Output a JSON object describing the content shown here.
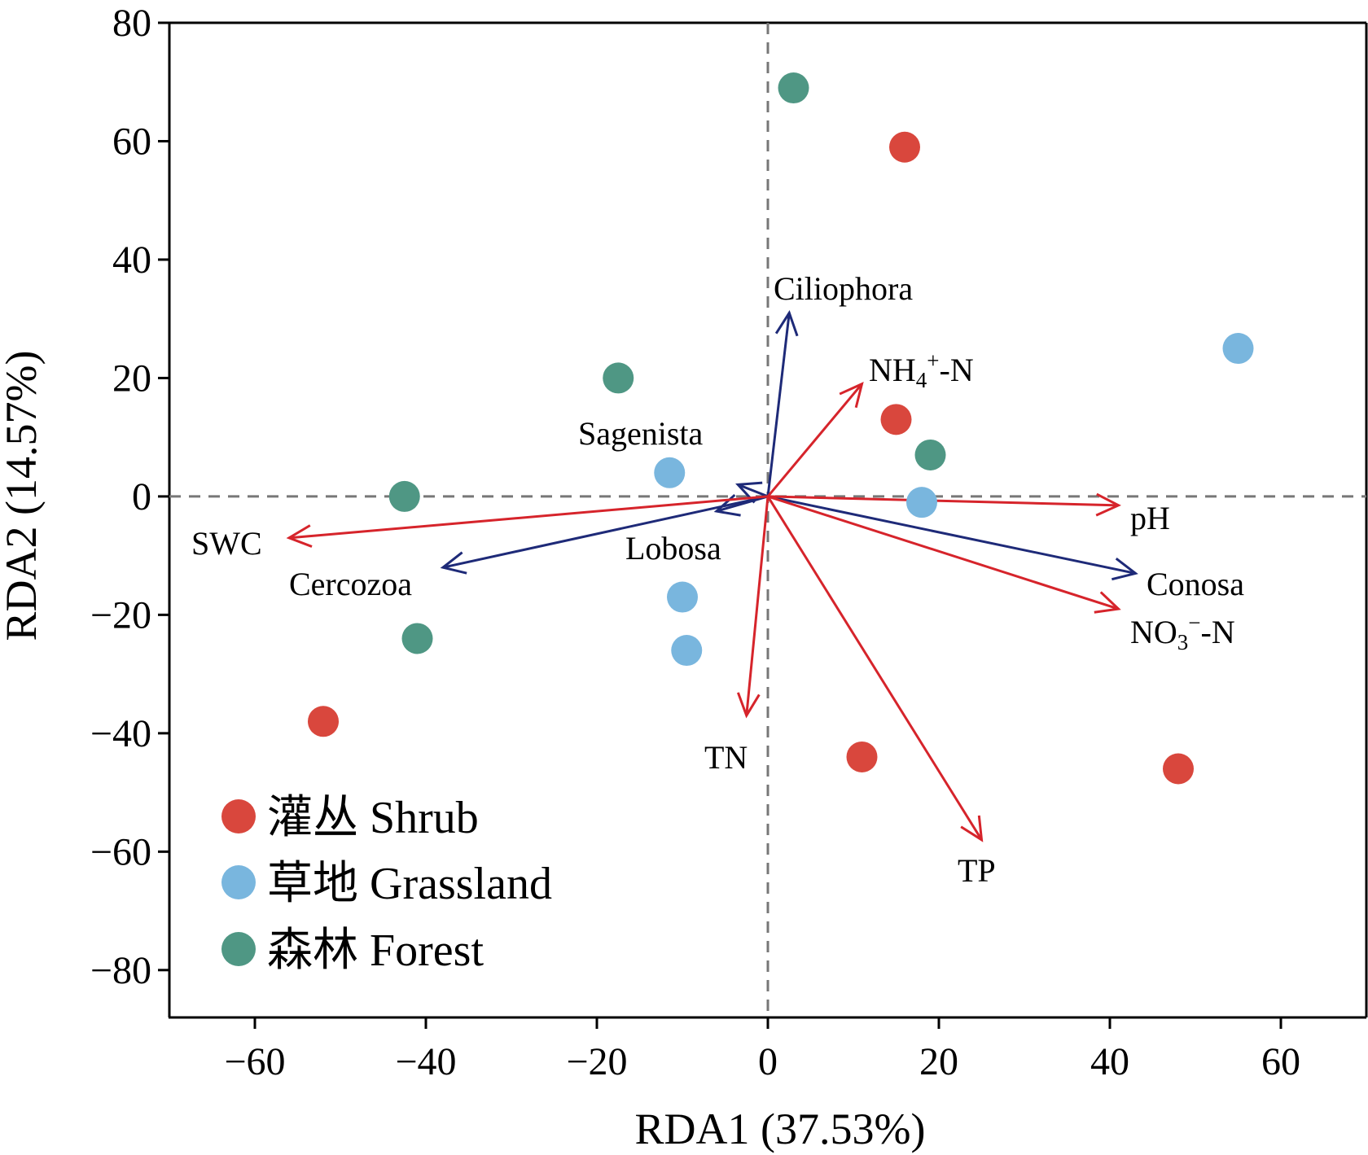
{
  "chart_data": {
    "type": "scatter",
    "title": "",
    "xlabel": "RDA1 (37.53%)",
    "ylabel": "RDA2 (14.57%)",
    "xlim": [
      -70,
      70
    ],
    "ylim": [
      -88,
      80
    ],
    "xticks": [
      -60,
      -40,
      -20,
      0,
      20,
      40,
      60
    ],
    "yticks": [
      -80,
      -60,
      -40,
      -20,
      0,
      20,
      40,
      60,
      80
    ],
    "xtick_labels": [
      "−60",
      "−40",
      "−20",
      "0",
      "20",
      "40",
      "60"
    ],
    "ytick_labels": [
      "−80",
      "−60",
      "−40",
      "−20",
      "0",
      "20",
      "40",
      "60",
      "80"
    ],
    "grid": false,
    "zero_lines": true,
    "legend_position": "bottom-left",
    "series": [
      {
        "name": "灌丛 Shrub",
        "color": "#d9473d",
        "points": [
          [
            16,
            59
          ],
          [
            15,
            13
          ],
          [
            -52,
            -38
          ],
          [
            11,
            -44
          ],
          [
            48,
            -46
          ]
        ]
      },
      {
        "name": "草地 Grassland",
        "color": "#79b6de",
        "points": [
          [
            55,
            25
          ],
          [
            -11.5,
            4
          ],
          [
            18,
            -1
          ],
          [
            -10,
            -17
          ],
          [
            -9.5,
            -26
          ]
        ]
      },
      {
        "name": "森林 Forest",
        "color": "#4f9784",
        "points": [
          [
            3,
            69
          ],
          [
            -17.5,
            20
          ],
          [
            19,
            7
          ],
          [
            -42.5,
            0
          ],
          [
            -41,
            -24
          ]
        ]
      }
    ],
    "vectors": [
      {
        "label": "Ciliophora",
        "x": 2.5,
        "y": 31,
        "color": "#1e2a78",
        "group": "protist"
      },
      {
        "label": "Sagenista",
        "x": -3.5,
        "y": 2,
        "color": "#1e2a78",
        "group": "protist"
      },
      {
        "label": "Lobosa",
        "x": -6,
        "y": -2.5,
        "color": "#1e2a78",
        "group": "protist"
      },
      {
        "label": "Cercozoa",
        "x": -38,
        "y": -12,
        "color": "#1e2a78",
        "group": "protist"
      },
      {
        "label": "Conosa",
        "x": 43,
        "y": -13,
        "color": "#1e2a78",
        "group": "protist"
      },
      {
        "label": "SWC",
        "x": -56,
        "y": -7,
        "color": "#d6242b",
        "group": "environment"
      },
      {
        "label": "NH4+-N",
        "x": 11,
        "y": 19,
        "color": "#d6242b",
        "group": "environment"
      },
      {
        "label": "pH",
        "x": 41,
        "y": -1.5,
        "color": "#d6242b",
        "group": "environment"
      },
      {
        "label": "NO3−-N",
        "x": 41,
        "y": -19,
        "color": "#d6242b",
        "group": "environment"
      },
      {
        "label": "TN",
        "x": -2.5,
        "y": -37,
        "color": "#d6242b",
        "group": "environment"
      },
      {
        "label": "TP",
        "x": 25,
        "y": -58,
        "color": "#d6242b",
        "group": "environment"
      }
    ],
    "vector_label_text": {
      "Ciliophora": "Ciliophora",
      "Sagenista": "Sagenista",
      "Lobosa": "Lobosa",
      "Cercozoa": "Cercozoa",
      "Conosa": "Conosa",
      "SWC": "SWC",
      "pH": "pH",
      "TN": "TN",
      "TP": "TP",
      "NH4_main": "NH",
      "NH4_sub": "4",
      "NH4_sup": "+",
      "NH4_tail": "-N",
      "NO3_main": "NO",
      "NO3_sub": "3",
      "NO3_sup": "−",
      "NO3_tail": "-N"
    }
  }
}
